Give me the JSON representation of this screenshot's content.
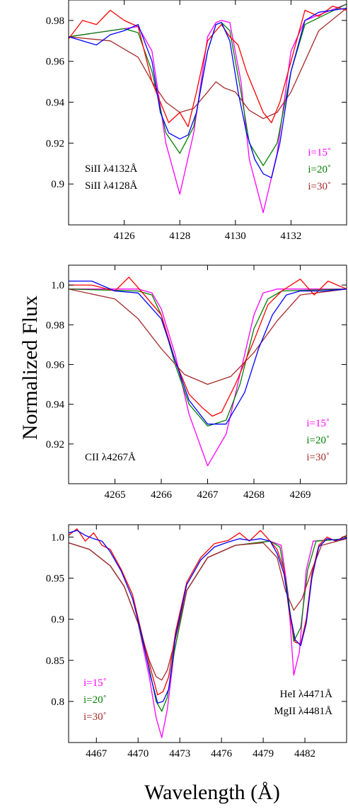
{
  "figure": {
    "ylabel": "Normalized Flux",
    "xlabel": "Wavelength (Å)"
  },
  "colors": {
    "i15": "#ff00ff",
    "i20": "#008000",
    "i30": "#a52a2a",
    "obs_red": "#ff0000",
    "obs_blue": "#0000ff"
  },
  "chart_data": [
    {
      "type": "line",
      "panel": "top",
      "xlim": [
        4124,
        4134
      ],
      "ylim": [
        0.88,
        0.99
      ],
      "xticks": [
        4126,
        4128,
        4130,
        4132
      ],
      "xtick_labels": [
        "4126",
        "4128",
        "4130",
        "4132"
      ],
      "yticks": [
        0.9,
        0.92,
        0.94,
        0.96,
        0.98
      ],
      "ytick_labels": [
        "0.9",
        "0.92",
        "0.94",
        "0.96",
        "0.98"
      ],
      "line_labels": [
        "SiII λ4132Å",
        "SiII λ4128Å"
      ],
      "legend": [
        "i=15˚",
        "i=20˚",
        "i=30˚"
      ],
      "series": [
        {
          "name": "i=15˚",
          "color": "#ff00ff",
          "x": [
            4124.0,
            4126.0,
            4126.5,
            4127.0,
            4127.5,
            4128.0,
            4128.5,
            4129.0,
            4129.3,
            4129.5,
            4129.8,
            4130.2,
            4130.5,
            4131.0,
            4131.5,
            4132.0,
            4132.5,
            4134.0
          ],
          "y": [
            0.972,
            0.976,
            0.977,
            0.965,
            0.92,
            0.895,
            0.925,
            0.972,
            0.979,
            0.98,
            0.979,
            0.95,
            0.912,
            0.886,
            0.915,
            0.965,
            0.98,
            0.988
          ]
        },
        {
          "name": "i=20˚",
          "color": "#008000",
          "x": [
            4124.0,
            4126.0,
            4126.5,
            4127.0,
            4127.5,
            4128.0,
            4128.5,
            4129.0,
            4129.3,
            4129.5,
            4129.8,
            4130.2,
            4130.5,
            4131.0,
            4131.5,
            4132.0,
            4132.5,
            4134.0
          ],
          "y": [
            0.972,
            0.976,
            0.974,
            0.955,
            0.925,
            0.915,
            0.928,
            0.965,
            0.978,
            0.979,
            0.975,
            0.945,
            0.92,
            0.909,
            0.92,
            0.955,
            0.978,
            0.988
          ]
        },
        {
          "name": "i=30˚",
          "color": "#a52a2a",
          "x": [
            4124.0,
            4125.5,
            4126.5,
            4127.0,
            4127.5,
            4128.0,
            4128.5,
            4129.0,
            4129.3,
            4129.6,
            4130.0,
            4130.5,
            4131.0,
            4131.5,
            4132.0,
            4132.5,
            4133.0,
            4134.0
          ],
          "y": [
            0.972,
            0.97,
            0.962,
            0.95,
            0.94,
            0.935,
            0.937,
            0.945,
            0.95,
            0.947,
            0.945,
            0.936,
            0.932,
            0.935,
            0.945,
            0.96,
            0.975,
            0.986
          ]
        },
        {
          "name": "observed (red)",
          "color": "#ff0000",
          "x": [
            4124.0,
            4124.5,
            4125.0,
            4125.5,
            4126.0,
            4126.5,
            4127.0,
            4127.3,
            4127.6,
            4128.0,
            4128.3,
            4128.6,
            4129.0,
            4129.3,
            4129.5,
            4129.8,
            4130.1,
            4130.4,
            4130.7,
            4131.0,
            4131.3,
            4131.6,
            4132.0,
            4132.5,
            4133.0,
            4133.5,
            4134.0
          ],
          "y": [
            0.971,
            0.98,
            0.978,
            0.985,
            0.98,
            0.977,
            0.95,
            0.94,
            0.93,
            0.935,
            0.928,
            0.945,
            0.97,
            0.975,
            0.978,
            0.972,
            0.968,
            0.955,
            0.945,
            0.935,
            0.93,
            0.94,
            0.96,
            0.985,
            0.982,
            0.987,
            0.985
          ]
        },
        {
          "name": "observed (blue)",
          "color": "#0000ff",
          "x": [
            4124.0,
            4124.5,
            4125.0,
            4125.5,
            4126.0,
            4126.5,
            4127.0,
            4127.3,
            4127.6,
            4128.0,
            4128.3,
            4128.6,
            4129.0,
            4129.3,
            4129.5,
            4129.8,
            4130.1,
            4130.4,
            4130.7,
            4131.0,
            4131.3,
            4131.6,
            4132.0,
            4132.5,
            4133.0,
            4133.5,
            4134.0
          ],
          "y": [
            0.972,
            0.97,
            0.968,
            0.973,
            0.975,
            0.978,
            0.96,
            0.935,
            0.925,
            0.922,
            0.924,
            0.935,
            0.965,
            0.978,
            0.979,
            0.97,
            0.945,
            0.925,
            0.912,
            0.905,
            0.903,
            0.92,
            0.955,
            0.98,
            0.984,
            0.985,
            0.986
          ]
        }
      ]
    },
    {
      "type": "line",
      "panel": "middle",
      "xlim": [
        4264,
        4270
      ],
      "ylim": [
        0.9,
        1.01
      ],
      "xticks": [
        4265,
        4266,
        4267,
        4268,
        4269
      ],
      "xtick_labels": [
        "4265",
        "4266",
        "4267",
        "4268",
        "4269"
      ],
      "yticks": [
        0.92,
        0.94,
        0.96,
        0.98,
        1.0
      ],
      "ytick_labels": [
        "0.92",
        "0.94",
        "0.96",
        "0.98",
        "1.0"
      ],
      "line_labels": [
        "CII λ4267Å"
      ],
      "legend": [
        "i=15˚",
        "i=20˚",
        "i=30˚"
      ],
      "series": [
        {
          "name": "i=15˚",
          "color": "#ff00ff",
          "x": [
            4264.0,
            4265.5,
            4265.8,
            4266.0,
            4266.3,
            4266.6,
            4267.0,
            4267.4,
            4267.7,
            4268.0,
            4268.2,
            4268.5,
            4270.0
          ],
          "y": [
            0.998,
            0.998,
            0.996,
            0.988,
            0.965,
            0.935,
            0.909,
            0.925,
            0.955,
            0.985,
            0.996,
            0.998,
            0.998
          ]
        },
        {
          "name": "i=20˚",
          "color": "#008000",
          "x": [
            4264.0,
            4265.5,
            4265.8,
            4266.0,
            4266.3,
            4266.6,
            4267.0,
            4267.4,
            4267.7,
            4268.0,
            4268.3,
            4268.6,
            4270.0
          ],
          "y": [
            0.998,
            0.997,
            0.995,
            0.985,
            0.96,
            0.94,
            0.929,
            0.932,
            0.95,
            0.978,
            0.993,
            0.997,
            0.998
          ]
        },
        {
          "name": "i=30˚",
          "color": "#a52a2a",
          "x": [
            4264.0,
            4265.0,
            4265.5,
            4266.0,
            4266.5,
            4267.0,
            4267.5,
            4268.0,
            4268.5,
            4269.0,
            4270.0
          ],
          "y": [
            0.998,
            0.993,
            0.983,
            0.968,
            0.955,
            0.95,
            0.954,
            0.966,
            0.982,
            0.995,
            0.998
          ]
        },
        {
          "name": "observed (red)",
          "color": "#ff0000",
          "x": [
            4264.0,
            4264.5,
            4265.0,
            4265.3,
            4265.6,
            4266.0,
            4266.3,
            4266.6,
            4266.9,
            4267.1,
            4267.3,
            4267.6,
            4268.0,
            4268.3,
            4268.6,
            4269.0,
            4269.3,
            4269.6,
            4270.0
          ],
          "y": [
            1.0,
            1.0,
            0.997,
            1.004,
            0.996,
            0.985,
            0.962,
            0.945,
            0.938,
            0.934,
            0.936,
            0.95,
            0.972,
            0.99,
            0.997,
            1.003,
            0.995,
            1.002,
            0.998
          ]
        },
        {
          "name": "observed (blue)",
          "color": "#0000ff",
          "x": [
            4264.0,
            4264.5,
            4265.0,
            4265.5,
            4266.0,
            4266.3,
            4266.6,
            4267.0,
            4267.4,
            4267.8,
            4268.1,
            4268.4,
            4268.7,
            4269.0,
            4269.5,
            4270.0
          ],
          "y": [
            1.002,
            1.002,
            0.997,
            0.996,
            0.983,
            0.962,
            0.942,
            0.93,
            0.93,
            0.946,
            0.968,
            0.985,
            0.995,
            0.997,
            0.997,
            0.998
          ]
        }
      ]
    },
    {
      "type": "line",
      "panel": "bottom",
      "xlim": [
        4465,
        4485
      ],
      "ylim": [
        0.75,
        1.015
      ],
      "xticks": [
        4467,
        4470,
        4473,
        4476,
        4479,
        4482
      ],
      "xtick_labels": [
        "4467",
        "4470",
        "4473",
        "4476",
        "4479",
        "4482"
      ],
      "yticks": [
        0.8,
        0.85,
        0.9,
        0.95,
        1.0
      ],
      "ytick_labels": [
        "0.8",
        "0.85",
        "0.9",
        "0.95",
        "1.0"
      ],
      "line_labels": [
        "HeI λ4471Å",
        "MgII λ4481Å"
      ],
      "legend": [
        "i=15˚",
        "i=20˚",
        "i=30˚"
      ],
      "series": [
        {
          "name": "i=15˚",
          "color": "#ff00ff",
          "x": [
            4465.0,
            4466.5,
            4468.0,
            4469.0,
            4470.0,
            4470.8,
            4471.3,
            4471.7,
            4472.1,
            4472.6,
            4473.5,
            4475.0,
            4477.0,
            4479.5,
            4480.3,
            4480.8,
            4481.2,
            4481.6,
            4482.1,
            4482.6,
            4485.0
          ],
          "y": [
            0.993,
            0.985,
            0.965,
            0.94,
            0.895,
            0.83,
            0.78,
            0.756,
            0.79,
            0.86,
            0.935,
            0.975,
            0.99,
            0.995,
            0.99,
            0.93,
            0.832,
            0.86,
            0.96,
            0.995,
            0.998
          ]
        },
        {
          "name": "i=20˚",
          "color": "#008000",
          "x": [
            4465.0,
            4466.5,
            4468.0,
            4469.0,
            4470.0,
            4470.8,
            4471.3,
            4471.7,
            4472.1,
            4472.6,
            4473.5,
            4475.0,
            4477.0,
            4479.5,
            4480.2,
            4480.7,
            4481.2,
            4481.7,
            4482.2,
            4482.8,
            4485.0
          ],
          "y": [
            0.993,
            0.985,
            0.965,
            0.94,
            0.895,
            0.84,
            0.8,
            0.788,
            0.805,
            0.86,
            0.935,
            0.975,
            0.99,
            0.995,
            0.988,
            0.94,
            0.873,
            0.89,
            0.96,
            0.995,
            0.998
          ]
        },
        {
          "name": "i=30˚",
          "color": "#a52a2a",
          "x": [
            4465.0,
            4466.5,
            4468.0,
            4469.0,
            4470.0,
            4470.8,
            4471.3,
            4471.7,
            4472.1,
            4472.6,
            4473.5,
            4475.0,
            4477.0,
            4479.0,
            4480.0,
            4480.6,
            4481.2,
            4481.8,
            4482.5,
            4483.2,
            4485.0
          ],
          "y": [
            0.993,
            0.985,
            0.965,
            0.94,
            0.895,
            0.85,
            0.83,
            0.826,
            0.838,
            0.87,
            0.935,
            0.975,
            0.99,
            0.993,
            0.975,
            0.935,
            0.911,
            0.925,
            0.96,
            0.99,
            0.998
          ]
        },
        {
          "name": "observed (red)",
          "color": "#ff0000",
          "x": [
            4465.0,
            4465.6,
            4466.2,
            4466.8,
            4467.4,
            4468.0,
            4468.8,
            4469.6,
            4470.3,
            4470.9,
            4471.4,
            4471.8,
            4472.2,
            4472.7,
            4473.5,
            4474.5,
            4475.5,
            4476.5,
            4477.3,
            4478.0,
            4478.8,
            4479.5,
            4480.0,
            4480.5,
            4480.9,
            4481.3,
            4481.7,
            4482.1,
            4482.5,
            4483.0,
            4483.6,
            4484.2,
            4485.0
          ],
          "y": [
            1.002,
            1.01,
            0.995,
            1.005,
            0.99,
            0.985,
            0.96,
            0.93,
            0.88,
            0.84,
            0.808,
            0.812,
            0.83,
            0.885,
            0.945,
            0.975,
            0.992,
            0.996,
            1.005,
            0.995,
            1.008,
            0.995,
            0.985,
            0.96,
            0.905,
            0.872,
            0.87,
            0.9,
            0.955,
            0.99,
            1.0,
            0.995,
            1.002
          ]
        },
        {
          "name": "observed (blue)",
          "color": "#0000ff",
          "x": [
            4465.0,
            4465.6,
            4466.2,
            4466.8,
            4467.4,
            4468.0,
            4468.8,
            4469.6,
            4470.3,
            4470.9,
            4471.4,
            4471.8,
            4472.2,
            4472.7,
            4473.5,
            4474.5,
            4475.5,
            4476.5,
            4477.3,
            4478.0,
            4478.8,
            4479.5,
            4480.0,
            4480.5,
            4480.9,
            4481.3,
            4481.7,
            4482.1,
            4482.5,
            4483.0,
            4483.6,
            4484.2,
            4485.0
          ],
          "y": [
            1.005,
            1.008,
            1.002,
            0.998,
            0.995,
            0.982,
            0.958,
            0.925,
            0.878,
            0.83,
            0.798,
            0.8,
            0.815,
            0.88,
            0.942,
            0.972,
            0.988,
            0.994,
            0.998,
            0.996,
            0.998,
            0.995,
            0.98,
            0.955,
            0.91,
            0.875,
            0.868,
            0.895,
            0.95,
            0.988,
            0.998,
            0.996,
            0.999
          ]
        }
      ]
    }
  ]
}
